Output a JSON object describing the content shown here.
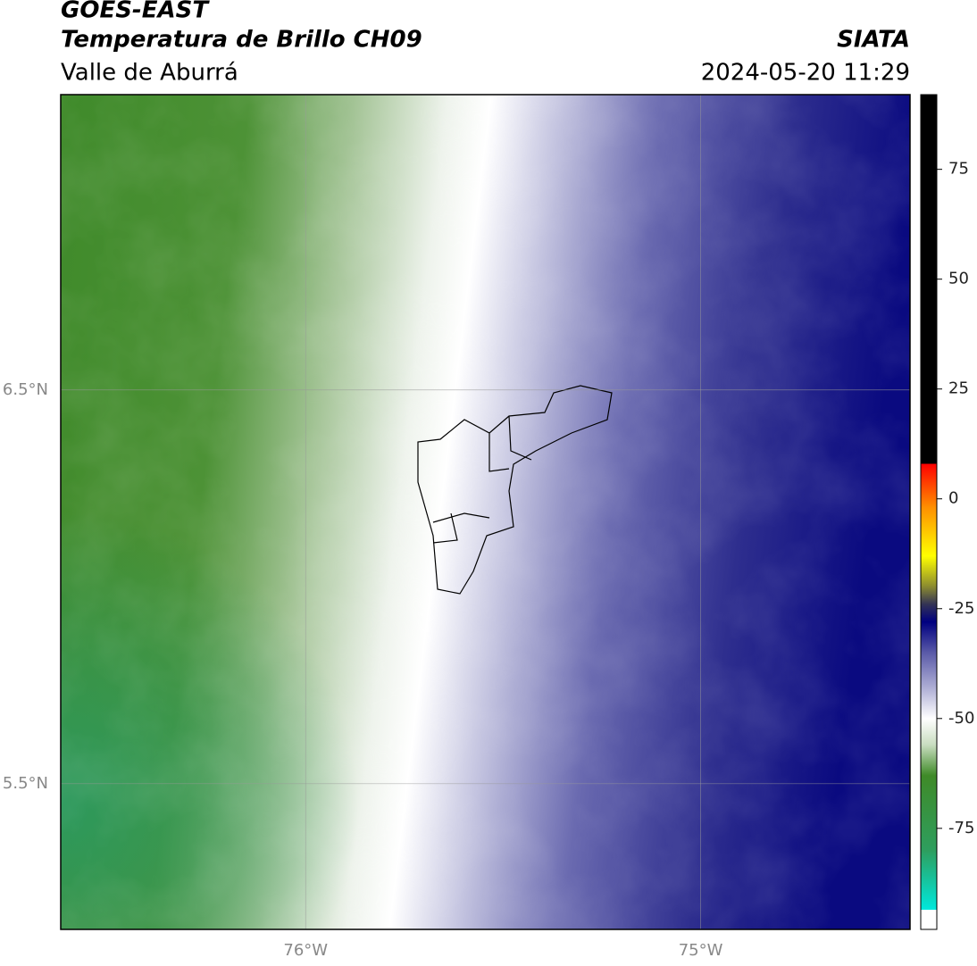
{
  "header": {
    "title": "GOES-EAST",
    "subtitle": "Temperatura de Brillo CH09",
    "region": "Valle de Aburrá",
    "source": "SIATA",
    "timestamp": "2024-05-20 11:29"
  },
  "map": {
    "lonlim": [
      -76.62,
      -74.47
    ],
    "latlim": [
      5.13,
      7.25
    ],
    "lon_ticks": [
      {
        "value": -76,
        "label": "76°W"
      },
      {
        "value": -75,
        "label": "75°W"
      }
    ],
    "lat_ticks": [
      {
        "value": 6.5,
        "label": "6.5°N"
      },
      {
        "value": 5.5,
        "label": "5.5°N"
      }
    ],
    "grid": true
  },
  "colorbar": {
    "lim": [
      -98,
      92
    ],
    "ticks": [
      75,
      50,
      25,
      0,
      -25,
      -50,
      -75
    ],
    "stops": [
      [
        -98,
        "#ffffff"
      ],
      [
        -93.5,
        "#ffffff"
      ],
      [
        -93.5,
        "#00e8dc"
      ],
      [
        -80,
        "#2e9e5e"
      ],
      [
        -63,
        "#3f8a28"
      ],
      [
        -56,
        "#c9ddc0"
      ],
      [
        -50,
        "#ffffff"
      ],
      [
        -44,
        "#b9b9db"
      ],
      [
        -35,
        "#5a5aa8"
      ],
      [
        -28,
        "#000080"
      ],
      [
        -24,
        "#333355"
      ],
      [
        -20,
        "#8a8a30"
      ],
      [
        -13,
        "#ffff00"
      ],
      [
        -2,
        "#ff9000"
      ],
      [
        8,
        "#ff0000"
      ],
      [
        8,
        "#000000"
      ],
      [
        92,
        "#000000"
      ]
    ]
  }
}
